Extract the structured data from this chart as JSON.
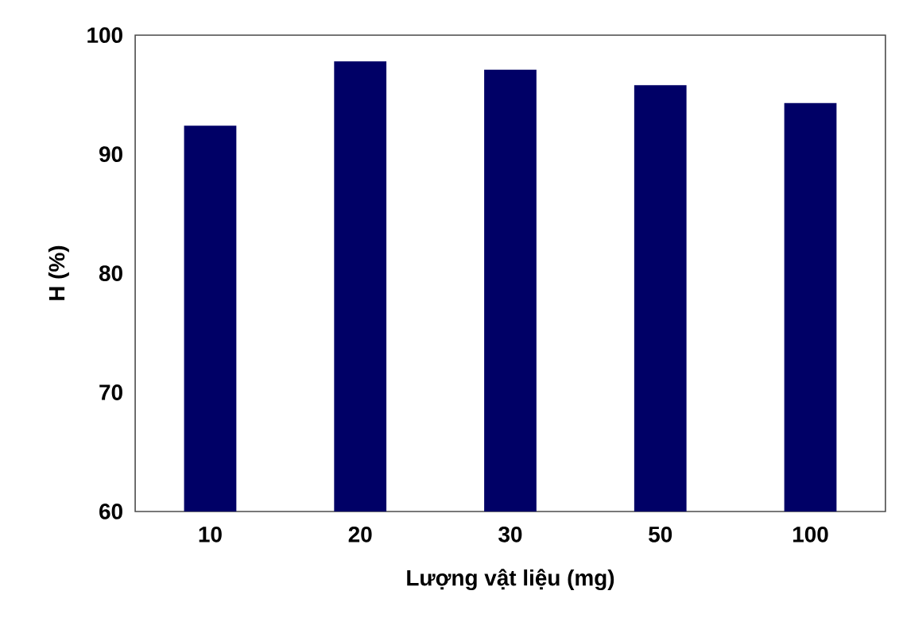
{
  "chart_data": {
    "type": "bar",
    "xlabel": "Lượng vật liệu (mg)",
    "ylabel": "H (%)",
    "categories": [
      "10",
      "20",
      "30",
      "50",
      "100"
    ],
    "values": [
      92.4,
      97.8,
      97.1,
      95.8,
      94.3
    ],
    "color": "#000066",
    "ylim": [
      60,
      100
    ],
    "yticks": [
      60,
      70,
      80,
      90,
      100
    ],
    "grid": false
  }
}
